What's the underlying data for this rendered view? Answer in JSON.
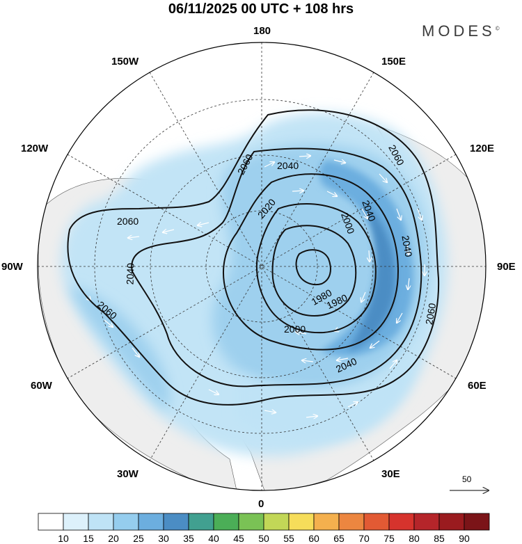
{
  "title": "06/11/2025  00 UTC  + 108 hrs",
  "brand": "MODES",
  "brand_mark": "©",
  "longitude_labels": {
    "lon_180": "180",
    "lon_150E": "150E",
    "lon_120E": "120E",
    "lon_90E": "90E",
    "lon_60E": "60E",
    "lon_30E": "30E",
    "lon_0": "0",
    "lon_30W": "30W",
    "lon_60W": "60W",
    "lon_90W": "90W",
    "lon_120W": "120W",
    "lon_150W": "150W"
  },
  "contour_labels": [
    "2060",
    "2040",
    "2020",
    "2000",
    "1980",
    "2060",
    "2040",
    "2060",
    "2040",
    "2000",
    "1980",
    "2040",
    "2060",
    "2060",
    "2040"
  ],
  "wind_reference": {
    "value": "50"
  },
  "colorbar": {
    "labels": [
      "10",
      "15",
      "20",
      "25",
      "30",
      "35",
      "40",
      "45",
      "50",
      "55",
      "60",
      "65",
      "70",
      "75",
      "80",
      "85",
      "90"
    ],
    "colors": [
      "#ffffff",
      "#ddf1fb",
      "#bfe3f6",
      "#95cdee",
      "#6caedf",
      "#4b8dc4",
      "#41a090",
      "#4bae57",
      "#7ac255",
      "#c2d757",
      "#f6dd5a",
      "#f4b04e",
      "#ec8640",
      "#e25a34",
      "#d6332d",
      "#b5252a",
      "#9a1b1f",
      "#7b1418"
    ]
  },
  "colors": {
    "land": "#f0f0f0",
    "contour": "#111111",
    "wind_arrow": "#ffffff"
  }
}
